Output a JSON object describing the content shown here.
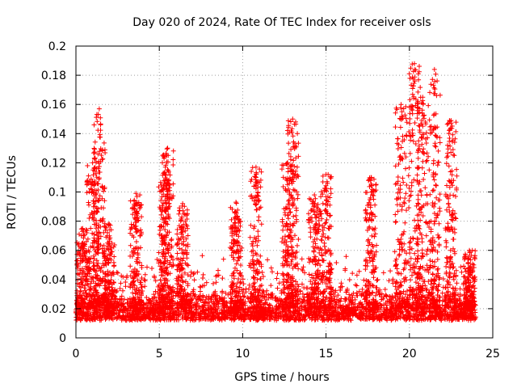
{
  "chart_data": {
    "type": "scatter",
    "title": "Day 020 of 2024, Rate Of TEC Index for receiver osls",
    "xlabel": "GPS time / hours",
    "ylabel": "ROTI / TECUs",
    "xlim": [
      0,
      25
    ],
    "ylim": [
      0,
      0.2
    ],
    "xticks": [
      0,
      5,
      10,
      15,
      20,
      25
    ],
    "xtick_labels": [
      "0",
      "5",
      "10",
      "15",
      "20",
      "25"
    ],
    "yticks": [
      0,
      0.02,
      0.04,
      0.06,
      0.08,
      0.1,
      0.12,
      0.14,
      0.16,
      0.18,
      0.2
    ],
    "ytick_labels": [
      "0",
      "0.02",
      "0.04",
      "0.06",
      "0.08",
      "0.1",
      "0.12",
      "0.14",
      "0.16",
      "0.18",
      "0.2"
    ],
    "grid": true,
    "marker": "+",
    "color": "#ff0000",
    "series": [
      {
        "name": "ROTI",
        "x_range": [
          0,
          24
        ],
        "typical_range": [
          0.01,
          0.04
        ],
        "peaks": [
          {
            "x": 0.4,
            "y": 0.075
          },
          {
            "x": 1.0,
            "y": 0.12
          },
          {
            "x": 1.4,
            "y": 0.157
          },
          {
            "x": 2.0,
            "y": 0.078
          },
          {
            "x": 3.6,
            "y": 0.099
          },
          {
            "x": 5.3,
            "y": 0.113
          },
          {
            "x": 5.5,
            "y": 0.13
          },
          {
            "x": 6.4,
            "y": 0.092
          },
          {
            "x": 9.6,
            "y": 0.093
          },
          {
            "x": 10.8,
            "y": 0.117
          },
          {
            "x": 12.7,
            "y": 0.12
          },
          {
            "x": 13.0,
            "y": 0.15
          },
          {
            "x": 14.3,
            "y": 0.098
          },
          {
            "x": 15.0,
            "y": 0.112
          },
          {
            "x": 17.7,
            "y": 0.11
          },
          {
            "x": 19.5,
            "y": 0.16
          },
          {
            "x": 20.3,
            "y": 0.188
          },
          {
            "x": 20.8,
            "y": 0.165
          },
          {
            "x": 21.5,
            "y": 0.184
          },
          {
            "x": 22.5,
            "y": 0.149
          },
          {
            "x": 23.6,
            "y": 0.06
          }
        ]
      }
    ]
  }
}
